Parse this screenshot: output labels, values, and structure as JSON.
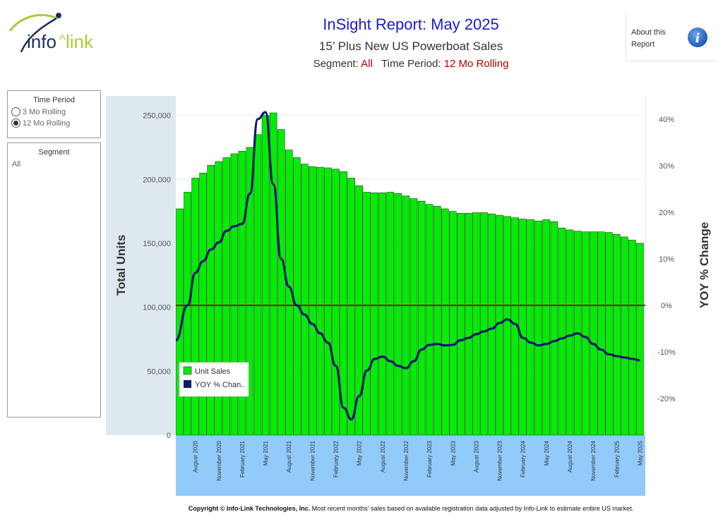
{
  "header": {
    "title": "InSight Report: May 2025",
    "subtitle": "15’ Plus New US Powerboat Sales",
    "segment_label": "Segment:",
    "segment_value": "All",
    "period_label": "Time Period:",
    "period_value": "12 Mo Rolling"
  },
  "about": {
    "line1": "About this",
    "line2": "Report",
    "icon": "info-icon"
  },
  "logo": {
    "text": "info^link"
  },
  "filters": {
    "time_period": {
      "title": "Time Period",
      "options": [
        "3 Mo Rolling",
        "12 Mo Rolling"
      ],
      "selected": "12 Mo Rolling"
    },
    "segment": {
      "title": "Segment",
      "value": "All"
    }
  },
  "colors": {
    "bars": "#00ee00",
    "line": "#0a1a6b",
    "zero_line": "#b00000",
    "plot_bg": "#dde9ef",
    "axis_band": "#91cbf9",
    "title": "#1a1ad4"
  },
  "footer": {
    "copyright": "Copyright © Info-Link Technologies, Inc.",
    "note": "  Most recent months' sales based on available registration data adjusted by Info-Link to estimate entiire US market."
  },
  "chart_data": {
    "type": "bar+line",
    "title": "15’ Plus New US Powerboat Sales",
    "ylabel_left": "Total Units",
    "ylabel_right": "YOY % Change",
    "ylim_left": [
      0,
      260000
    ],
    "ylim_right": [
      -28,
      44
    ],
    "yticks_left": [
      "0",
      "50,000",
      "100,000",
      "150,000",
      "200,000",
      "250,000"
    ],
    "yticks_right": [
      "-20%",
      "-10%",
      "0%",
      "10%",
      "20%",
      "30%",
      "40%"
    ],
    "x_tick_labels": [
      "August 2020",
      "November 2020",
      "February 2021",
      "May 2021",
      "August 2021",
      "November 2021",
      "February 2022",
      "May 2022",
      "August 2022",
      "November 2022",
      "February 2023",
      "May 2023",
      "August 2023",
      "November 2023",
      "February 2024",
      "May 2024",
      "August 2024",
      "November 2024",
      "February 2025",
      "May 2025"
    ],
    "legend": [
      "Unit Sales",
      "YOY % Chan.."
    ],
    "categories": [
      "Jun 2020",
      "Jul 2020",
      "Aug 2020",
      "Sep 2020",
      "Oct 2020",
      "Nov 2020",
      "Dec 2020",
      "Jan 2021",
      "Feb 2021",
      "Mar 2021",
      "Apr 2021",
      "May 2021",
      "Jun 2021",
      "Jul 2021",
      "Aug 2021",
      "Sep 2021",
      "Oct 2021",
      "Nov 2021",
      "Dec 2021",
      "Jan 2022",
      "Feb 2022",
      "Mar 2022",
      "Apr 2022",
      "May 2022",
      "Jun 2022",
      "Jul 2022",
      "Aug 2022",
      "Sep 2022",
      "Oct 2022",
      "Nov 2022",
      "Dec 2022",
      "Jan 2023",
      "Feb 2023",
      "Mar 2023",
      "Apr 2023",
      "May 2023",
      "Jun 2023",
      "Jul 2023",
      "Aug 2023",
      "Sep 2023",
      "Oct 2023",
      "Nov 2023",
      "Dec 2023",
      "Jan 2024",
      "Feb 2024",
      "Mar 2024",
      "Apr 2024",
      "May 2024",
      "Jun 2024",
      "Jul 2024",
      "Aug 2024",
      "Sep 2024",
      "Oct 2024",
      "Nov 2024",
      "Dec 2024",
      "Jan 2025",
      "Feb 2025",
      "Mar 2025",
      "Apr 2025",
      "May 2025"
    ],
    "series": [
      {
        "name": "Unit Sales",
        "type": "bar",
        "values": [
          177000,
          190000,
          201000,
          205000,
          211000,
          214000,
          217000,
          220000,
          222000,
          225000,
          235000,
          250000,
          252000,
          239000,
          223000,
          217000,
          212000,
          210000,
          209500,
          209000,
          208000,
          206000,
          201000,
          195000,
          190000,
          189500,
          189500,
          190000,
          189000,
          187000,
          185000,
          183000,
          180500,
          179000,
          177000,
          175000,
          173500,
          173500,
          174000,
          174000,
          173000,
          172000,
          171000,
          170000,
          169000,
          168500,
          167500,
          168500,
          167000,
          162000,
          160500,
          159500,
          159000,
          159000,
          159000,
          158500,
          157000,
          155000,
          152500,
          150000
        ]
      },
      {
        "name": "YOY % Chan..",
        "type": "line",
        "values": [
          -7.5,
          0,
          7,
          9.5,
          12,
          13.5,
          16,
          17,
          17.5,
          24,
          40,
          41.5,
          26,
          10,
          4,
          0,
          -2,
          -4,
          -6,
          -8,
          -13,
          -22,
          -24.5,
          -19.5,
          -14,
          -11.5,
          -11,
          -12,
          -13,
          -13.5,
          -12,
          -9.5,
          -8.5,
          -8.3,
          -8.6,
          -8.5,
          -7.5,
          -7,
          -6.2,
          -5.6,
          -5,
          -3.8,
          -3,
          -4,
          -7,
          -8,
          -8.6,
          -8.3,
          -7.7,
          -7.1,
          -6.5,
          -6,
          -6.8,
          -8.3,
          -9.5,
          -10.5,
          -10.9,
          -11.2,
          -11.5,
          -11.8
        ]
      }
    ]
  }
}
